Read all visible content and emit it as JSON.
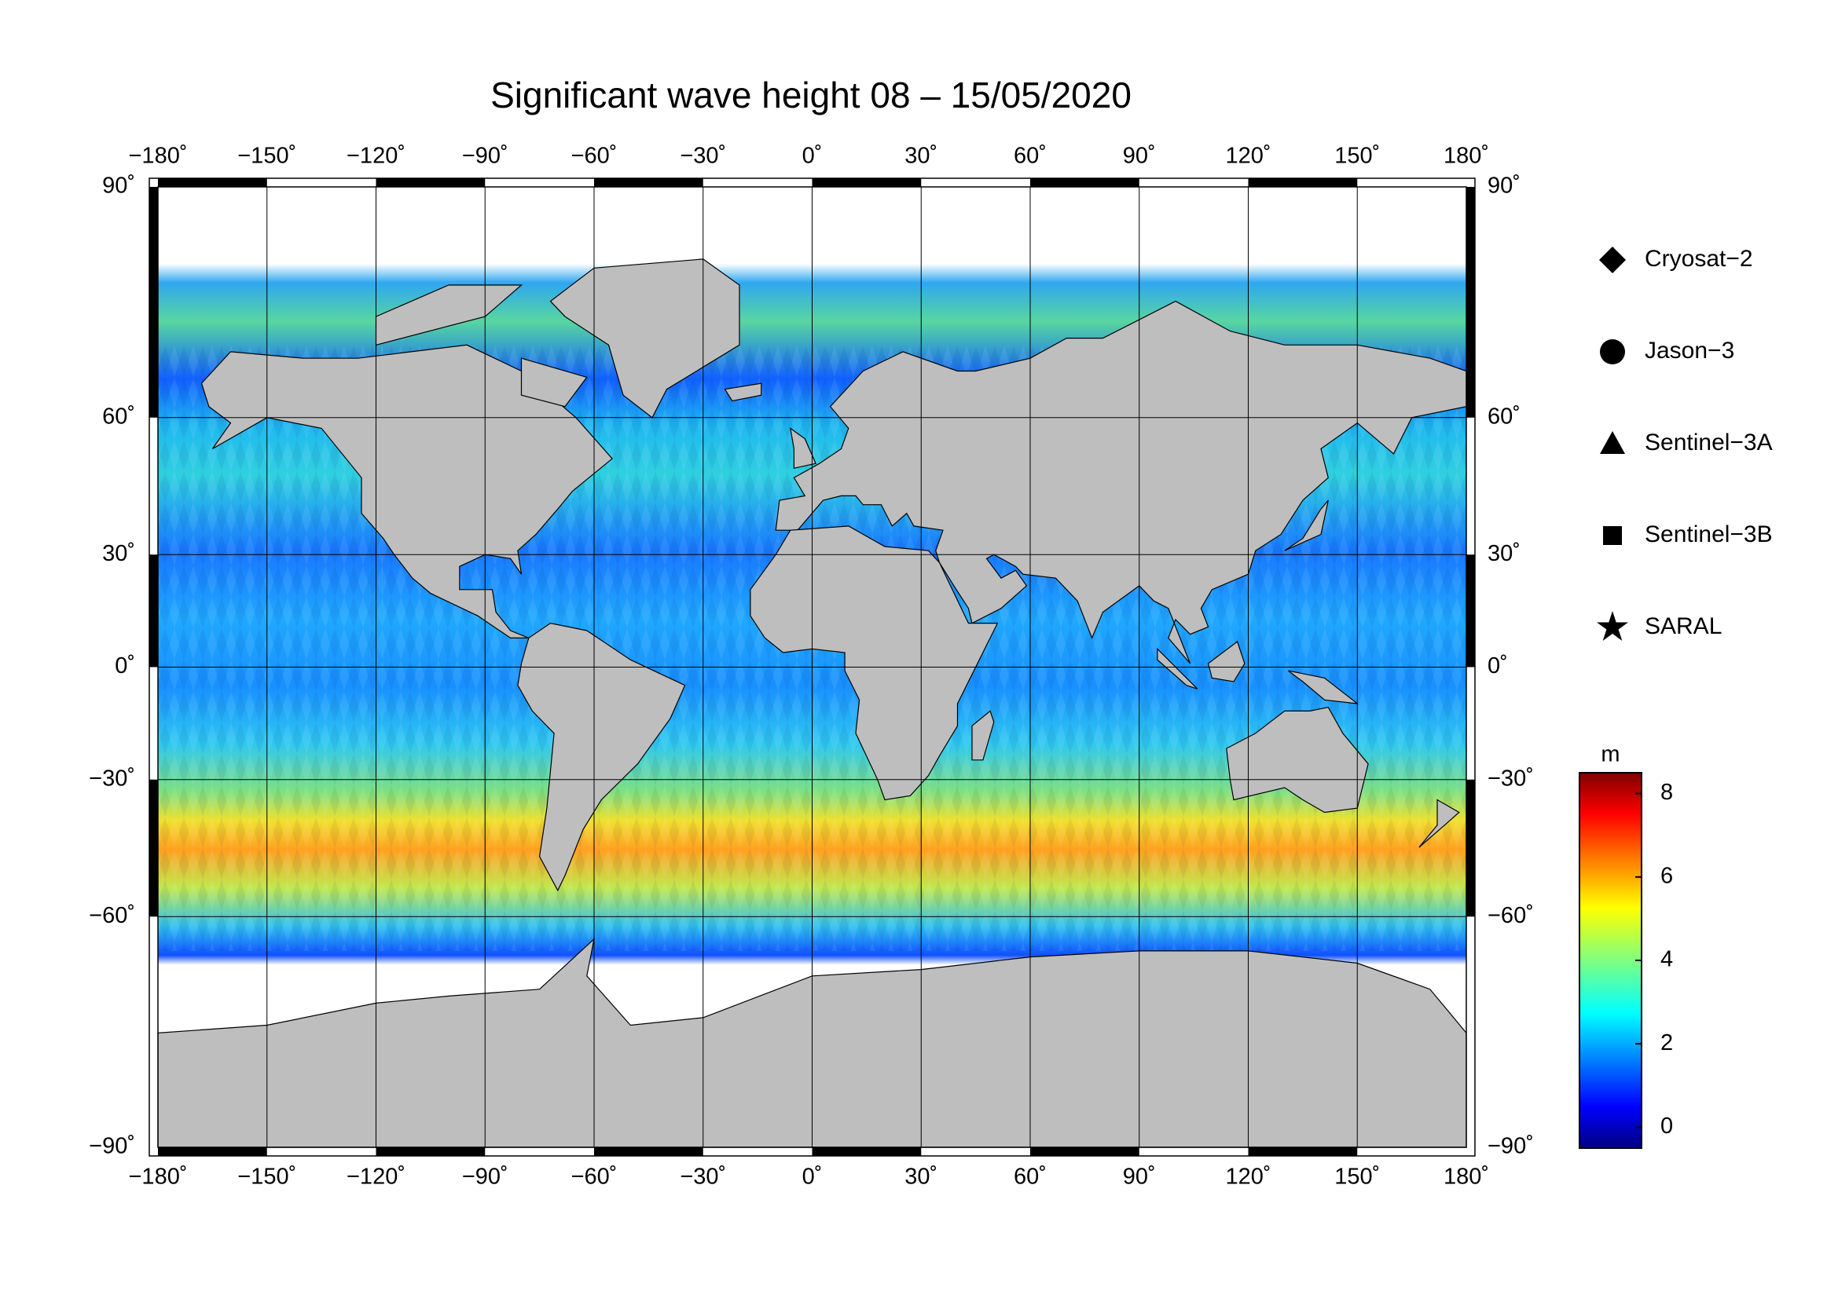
{
  "chart_data": {
    "type": "map",
    "title": "Significant wave height 08 – 15/05/2020",
    "projection": "miller",
    "xlim": [
      -180,
      180
    ],
    "ylim": [
      -90,
      90
    ],
    "xticks": [
      {
        "value": -180,
        "label": "−180˚"
      },
      {
        "value": -150,
        "label": "−150˚"
      },
      {
        "value": -120,
        "label": "−120˚"
      },
      {
        "value": -90,
        "label": "−90˚"
      },
      {
        "value": -60,
        "label": "−60˚"
      },
      {
        "value": -30,
        "label": "−30˚"
      },
      {
        "value": 0,
        "label": "0˚"
      },
      {
        "value": 30,
        "label": "30˚"
      },
      {
        "value": 60,
        "label": "60˚"
      },
      {
        "value": 90,
        "label": "90˚"
      },
      {
        "value": 120,
        "label": "120˚"
      },
      {
        "value": 150,
        "label": "150˚"
      },
      {
        "value": 180,
        "label": "180˚"
      }
    ],
    "yticks": [
      {
        "value": 90,
        "label": "90˚"
      },
      {
        "value": 60,
        "label": "60˚"
      },
      {
        "value": 30,
        "label": "30˚"
      },
      {
        "value": 0,
        "label": "0˚"
      },
      {
        "value": -30,
        "label": "−30˚"
      },
      {
        "value": -60,
        "label": "−60˚"
      },
      {
        "value": -90,
        "label": "−90˚"
      }
    ],
    "grid": true,
    "legend": [
      {
        "name": "Cryosat−2",
        "marker": "diamond"
      },
      {
        "name": "Jason−3",
        "marker": "circle"
      },
      {
        "name": "Sentinel−3A",
        "marker": "triangle"
      },
      {
        "name": "Sentinel−3B",
        "marker": "square"
      },
      {
        "name": "SARAL",
        "marker": "star"
      }
    ],
    "colorbar": {
      "label": "m",
      "clim": [
        -0.5,
        8.5
      ],
      "ticks": [
        0,
        2,
        4,
        6,
        8
      ],
      "colormap": "jet"
    }
  }
}
